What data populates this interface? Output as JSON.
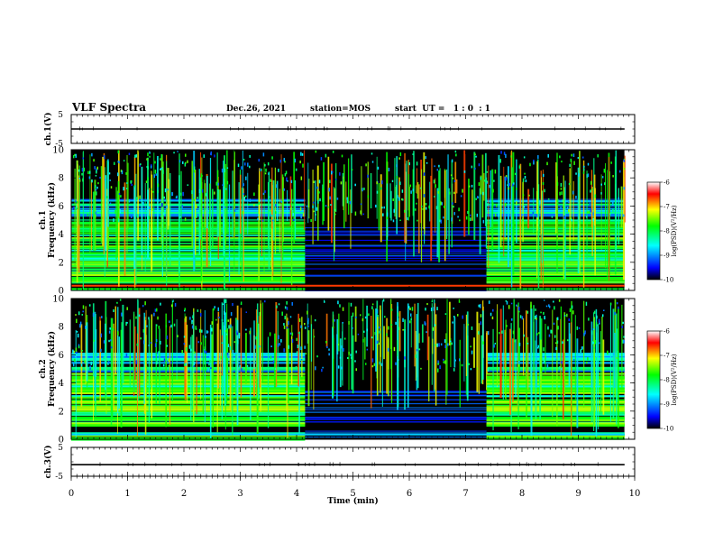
{
  "header": {
    "title": "VLF Spectra",
    "date": "Dec.26, 2021",
    "station": "station=MOS",
    "start_ut": "start  UT =   1 : 0  : 1"
  },
  "chart_data": [
    {
      "type": "line",
      "panel": "ch1-waveform",
      "ylabel": "ch.1(V)",
      "ylim": [
        -5,
        5
      ],
      "yticks": [
        "5",
        "-5"
      ],
      "xlim": [
        0,
        10
      ],
      "x": [
        0,
        9.82
      ],
      "y": [
        0,
        0
      ]
    },
    {
      "type": "heatmap",
      "panel": "ch1-spectrogram",
      "ylabel": "ch.1\nFrequency (kHz)",
      "ylim": [
        0,
        10
      ],
      "yticks": [
        "0",
        "2",
        "4",
        "6",
        "8",
        "10"
      ],
      "xlim": [
        0,
        10
      ],
      "data_x_end": 9.82,
      "quiet_interval_min": [
        4.15,
        7.37
      ],
      "colorbar": {
        "label": "log(PSD)(V²/Hz)",
        "range": [
          -10,
          -6
        ],
        "ticks": [
          "-6",
          "-7",
          "-8",
          "-9",
          "-10"
        ],
        "colormap": [
          "#000000",
          "#0000ff",
          "#00ffff",
          "#00ff00",
          "#ffff00",
          "#ff0000",
          "#ffffff"
        ]
      }
    },
    {
      "type": "heatmap",
      "panel": "ch2-spectrogram",
      "ylabel": "ch.2\nFrequency (kHz)",
      "ylim": [
        0,
        10
      ],
      "yticks": [
        "0",
        "2",
        "4",
        "6",
        "8",
        "10"
      ],
      "xlim": [
        0,
        10
      ],
      "data_x_end": 9.82,
      "quiet_interval_min": [
        4.15,
        7.37
      ],
      "colorbar": {
        "label": "log(PSD)(V²/Hz)",
        "range": [
          -10,
          -6
        ],
        "ticks": [
          "-6",
          "-7",
          "-8",
          "-9",
          "-10"
        ],
        "colormap": [
          "#000000",
          "#0000ff",
          "#00ffff",
          "#00ff00",
          "#ffff00",
          "#ff0000",
          "#ffffff"
        ]
      }
    },
    {
      "type": "line",
      "panel": "ch3-waveform",
      "ylabel": "ch.3(V)",
      "ylim": [
        -5,
        5
      ],
      "yticks": [
        "5",
        "-5"
      ],
      "xlim": [
        0,
        10
      ],
      "x": [
        0,
        9.82
      ],
      "y": [
        -1,
        -1
      ],
      "xlabel": "Time (min)",
      "xticks": [
        "0",
        "1",
        "2",
        "3",
        "4",
        "5",
        "6",
        "7",
        "8",
        "9",
        "10"
      ]
    }
  ]
}
